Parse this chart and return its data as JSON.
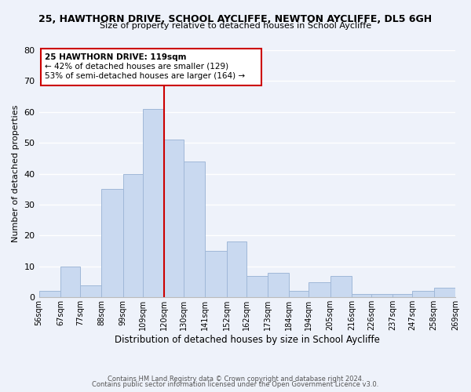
{
  "title1": "25, HAWTHORN DRIVE, SCHOOL AYCLIFFE, NEWTON AYCLIFFE, DL5 6GH",
  "title2": "Size of property relative to detached houses in School Aycliffe",
  "xlabel": "Distribution of detached houses by size in School Aycliffe",
  "ylabel": "Number of detached properties",
  "bin_edges": [
    56,
    67,
    77,
    88,
    99,
    109,
    120,
    130,
    141,
    152,
    162,
    173,
    184,
    194,
    205,
    216,
    226,
    237,
    247,
    258,
    269
  ],
  "bin_counts": [
    2,
    10,
    4,
    35,
    40,
    61,
    51,
    44,
    15,
    18,
    7,
    8,
    2,
    5,
    7,
    1,
    1,
    1,
    2,
    3
  ],
  "bar_color": "#c9d9f0",
  "bar_edge_color": "#a0b8d8",
  "vline_x": 120,
  "vline_color": "#cc0000",
  "ylim": [
    0,
    80
  ],
  "yticks": [
    0,
    10,
    20,
    30,
    40,
    50,
    60,
    70,
    80
  ],
  "annotation_title": "25 HAWTHORN DRIVE: 119sqm",
  "annotation_line1": "← 42% of detached houses are smaller (129)",
  "annotation_line2": "53% of semi-detached houses are larger (164) →",
  "footer1": "Contains HM Land Registry data © Crown copyright and database right 2024.",
  "footer2": "Contains public sector information licensed under the Open Government Licence v3.0.",
  "background_color": "#eef2fa",
  "grid_color": "#ffffff"
}
